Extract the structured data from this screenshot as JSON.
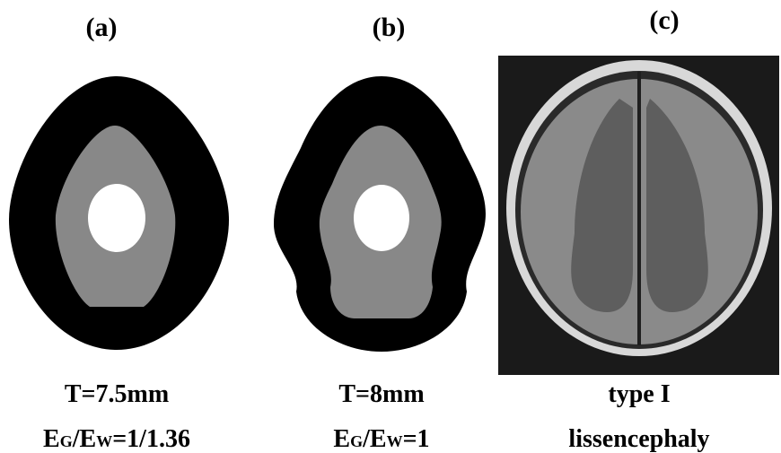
{
  "panels": [
    {
      "label": "(a)",
      "caption": {
        "line1": "T=7.5mm",
        "line2": [
          "E",
          "G",
          "/E",
          "W",
          "=1/1.36"
        ]
      }
    },
    {
      "label": "(b)",
      "caption": {
        "line1": "T=8mm",
        "line2": [
          "E",
          "G",
          "/E",
          "W",
          "=1"
        ]
      }
    },
    {
      "label": "(c)",
      "caption": {
        "line1": "type I",
        "line2": [
          "lissencephaly"
        ]
      }
    }
  ]
}
